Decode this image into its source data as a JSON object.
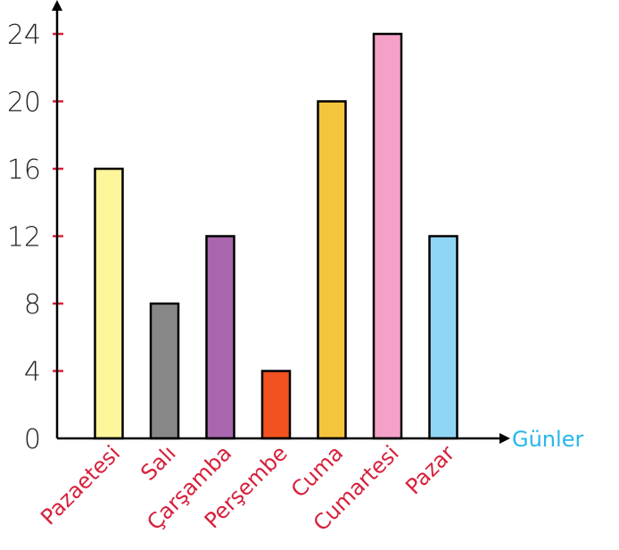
{
  "chart_data": {
    "type": "bar",
    "categories": [
      "Pazaetesi",
      "Salı",
      "Çarşamba",
      "Perşembe",
      "Cuma",
      "Cumartesi",
      "Pazar"
    ],
    "values": [
      16,
      8,
      12,
      4,
      20,
      24,
      12
    ],
    "bar_colors": [
      "#fff59a",
      "#878787",
      "#a866ad",
      "#f2521f",
      "#f5c43d",
      "#f4a1c8",
      "#8fd6f6"
    ],
    "xlabel": "Günler",
    "ylabel": "",
    "ylim": [
      0,
      24
    ],
    "yticks": [
      0,
      4,
      8,
      12,
      16,
      20,
      24
    ],
    "tick_color": "#d6213b",
    "category_label_color": "#d6213b",
    "xlabel_color": "#27b7e8",
    "grid": false,
    "legend": "none"
  }
}
